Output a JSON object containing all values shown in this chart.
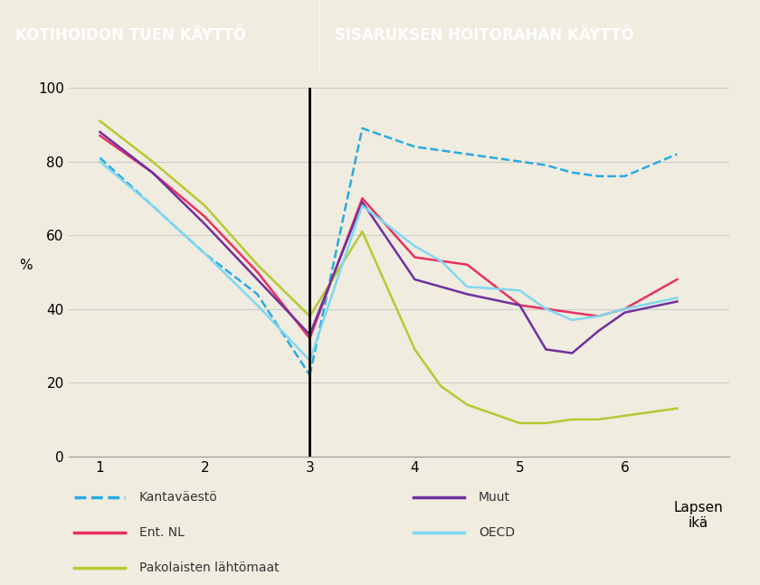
{
  "background_color": "#f0ece0",
  "header_color": "#29abe2",
  "header_text_left": "KOTIHOIDON TUEN KÄYTTÖ",
  "header_text_right": "SISARUKSEN HOITORAHAN KÄYTTÖ",
  "ylabel": "%",
  "xlabel": "Lapsen\nikä",
  "ylim": [
    0,
    100
  ],
  "yticks": [
    0,
    20,
    40,
    60,
    80,
    100
  ],
  "xticks": [
    1,
    2,
    3,
    4,
    5,
    6
  ],
  "divider_x": 3,
  "series": {
    "Kantaväestö": {
      "color": "#29abe2",
      "linestyle": "dashed",
      "linewidth": 1.8,
      "x": [
        1,
        1.5,
        2,
        2.5,
        3,
        3.5,
        4,
        4.5,
        5,
        5.25,
        5.5,
        5.75,
        6,
        6.5
      ],
      "y": [
        81,
        68,
        55,
        44,
        22,
        89,
        84,
        82,
        80,
        79,
        77,
        76,
        76,
        82
      ]
    },
    "Ent. NL": {
      "color": "#e83060",
      "linestyle": "solid",
      "linewidth": 1.8,
      "x": [
        1,
        1.5,
        2,
        2.5,
        3,
        3.5,
        4,
        4.25,
        4.5,
        5,
        5.25,
        5.5,
        5.75,
        6,
        6.5
      ],
      "y": [
        87,
        77,
        65,
        50,
        32,
        70,
        54,
        53,
        52,
        41,
        40,
        39,
        38,
        40,
        48
      ]
    },
    "Pakolaisten lähtömaat": {
      "color": "#b8c830",
      "linestyle": "solid",
      "linewidth": 1.8,
      "x": [
        1,
        1.5,
        2,
        2.5,
        3,
        3.5,
        4,
        4.25,
        4.5,
        5,
        5.25,
        5.5,
        5.75,
        6,
        6.5
      ],
      "y": [
        91,
        80,
        68,
        52,
        38,
        61,
        29,
        19,
        14,
        9,
        9,
        10,
        10,
        11,
        13
      ]
    },
    "Muut": {
      "color": "#7030a0",
      "linestyle": "solid",
      "linewidth": 1.8,
      "x": [
        1,
        1.5,
        2,
        2.5,
        3,
        3.5,
        4,
        4.25,
        4.5,
        5,
        5.25,
        5.5,
        5.75,
        6,
        6.5
      ],
      "y": [
        88,
        77,
        63,
        48,
        33,
        69,
        48,
        46,
        44,
        41,
        29,
        28,
        34,
        39,
        42
      ]
    },
    "OECD": {
      "color": "#80d8f0",
      "linestyle": "solid",
      "linewidth": 1.8,
      "x": [
        1,
        1.5,
        2,
        2.5,
        3,
        3.5,
        4,
        4.25,
        4.5,
        5,
        5.25,
        5.5,
        5.75,
        6,
        6.5
      ],
      "y": [
        80,
        68,
        55,
        41,
        26,
        68,
        57,
        53,
        46,
        45,
        40,
        37,
        38,
        40,
        43
      ]
    }
  }
}
